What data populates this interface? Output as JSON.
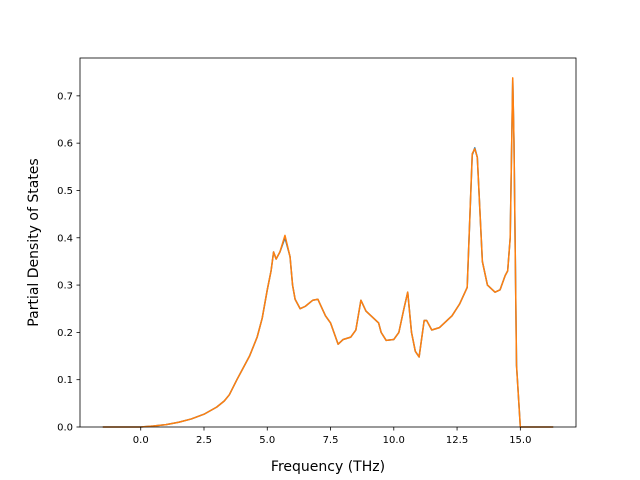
{
  "chart_data": {
    "type": "line",
    "title": "",
    "xlabel": "Frequency (THz)",
    "ylabel": "Partial Density of States",
    "xlim": [
      -2.4,
      17.2
    ],
    "ylim": [
      0.0,
      0.78
    ],
    "xticks": [
      0.0,
      2.5,
      5.0,
      7.5,
      10.0,
      12.5,
      15.0
    ],
    "xtick_labels": [
      "0.0",
      "2.5",
      "5.0",
      "7.5",
      "10.0",
      "12.5",
      "15.0"
    ],
    "yticks": [
      0.0,
      0.1,
      0.2,
      0.3,
      0.4,
      0.5,
      0.6,
      0.7
    ],
    "ytick_labels": [
      "0.0",
      "0.1",
      "0.2",
      "0.3",
      "0.4",
      "0.5",
      "0.6",
      "0.7"
    ],
    "grid": false,
    "series": [
      {
        "color": "#1f77b4",
        "x": [
          -1.5,
          0.0,
          0.5,
          1.0,
          1.5,
          2.0,
          2.5,
          3.0,
          3.3,
          3.5,
          3.8,
          4.0,
          4.3,
          4.6,
          4.8,
          5.0,
          5.15,
          5.25,
          5.35,
          5.5,
          5.7,
          5.9,
          6.0,
          6.1,
          6.3,
          6.5,
          6.8,
          7.0,
          7.3,
          7.5,
          7.8,
          8.0,
          8.3,
          8.5,
          8.7,
          8.9,
          9.1,
          9.4,
          9.5,
          9.7,
          10.0,
          10.2,
          10.4,
          10.55,
          10.7,
          10.85,
          11.0,
          11.2,
          11.3,
          11.5,
          11.8,
          12.0,
          12.3,
          12.6,
          12.9,
          13.1,
          13.2,
          13.3,
          13.5,
          13.7,
          14.0,
          14.2,
          14.4,
          14.5,
          14.6,
          14.7,
          14.75,
          14.85,
          15.0,
          15.2,
          15.6,
          16.3
        ],
        "y": [
          0.0,
          0.0,
          0.002,
          0.005,
          0.01,
          0.017,
          0.027,
          0.042,
          0.055,
          0.068,
          0.1,
          0.12,
          0.15,
          0.19,
          0.23,
          0.29,
          0.33,
          0.37,
          0.355,
          0.37,
          0.4,
          0.36,
          0.3,
          0.27,
          0.25,
          0.255,
          0.268,
          0.27,
          0.235,
          0.22,
          0.175,
          0.185,
          0.19,
          0.205,
          0.268,
          0.245,
          0.235,
          0.22,
          0.2,
          0.183,
          0.185,
          0.2,
          0.25,
          0.285,
          0.2,
          0.16,
          0.148,
          0.225,
          0.225,
          0.205,
          0.21,
          0.22,
          0.235,
          0.26,
          0.295,
          0.575,
          0.59,
          0.57,
          0.35,
          0.3,
          0.285,
          0.29,
          0.32,
          0.33,
          0.4,
          0.735,
          0.6,
          0.13,
          0.0,
          0.0,
          0.0,
          0.0
        ]
      },
      {
        "color": "#ff7f0e",
        "x": [
          -1.5,
          0.0,
          0.5,
          1.0,
          1.5,
          2.0,
          2.5,
          3.0,
          3.3,
          3.5,
          3.8,
          4.0,
          4.3,
          4.6,
          4.8,
          5.0,
          5.15,
          5.25,
          5.35,
          5.5,
          5.7,
          5.9,
          6.0,
          6.1,
          6.3,
          6.5,
          6.8,
          7.0,
          7.3,
          7.5,
          7.8,
          8.0,
          8.3,
          8.5,
          8.7,
          8.9,
          9.1,
          9.4,
          9.5,
          9.7,
          10.0,
          10.2,
          10.4,
          10.55,
          10.7,
          10.85,
          11.0,
          11.2,
          11.3,
          11.5,
          11.8,
          12.0,
          12.3,
          12.6,
          12.9,
          13.1,
          13.2,
          13.3,
          13.5,
          13.7,
          14.0,
          14.2,
          14.4,
          14.5,
          14.6,
          14.7,
          14.75,
          14.85,
          15.0,
          15.2,
          15.6,
          16.3
        ],
        "y": [
          0.0,
          0.0,
          0.002,
          0.005,
          0.01,
          0.017,
          0.027,
          0.042,
          0.055,
          0.068,
          0.1,
          0.12,
          0.15,
          0.19,
          0.23,
          0.29,
          0.33,
          0.37,
          0.355,
          0.37,
          0.405,
          0.36,
          0.3,
          0.27,
          0.25,
          0.255,
          0.268,
          0.27,
          0.235,
          0.22,
          0.175,
          0.185,
          0.19,
          0.205,
          0.268,
          0.245,
          0.235,
          0.22,
          0.2,
          0.183,
          0.185,
          0.2,
          0.25,
          0.285,
          0.2,
          0.16,
          0.148,
          0.225,
          0.225,
          0.205,
          0.21,
          0.22,
          0.235,
          0.26,
          0.295,
          0.578,
          0.588,
          0.57,
          0.35,
          0.3,
          0.285,
          0.29,
          0.32,
          0.33,
          0.4,
          0.738,
          0.6,
          0.13,
          0.0,
          0.0,
          0.0,
          0.0
        ]
      }
    ]
  }
}
